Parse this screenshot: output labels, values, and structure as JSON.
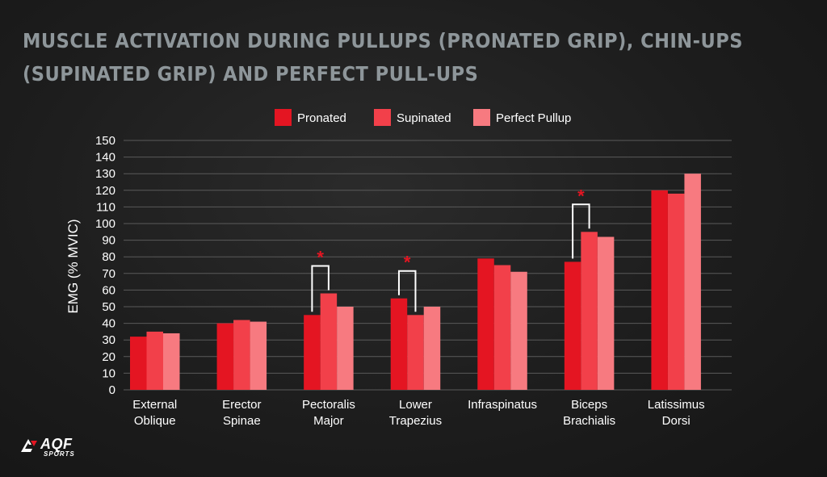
{
  "title": "Muscle Activation During Pullups (Pronated Grip), Chin-Ups (Supinated Grip) and Perfect Pull-Ups",
  "logo": {
    "main": "AQF",
    "sub": "SPORTS"
  },
  "colors": {
    "pronated": "#e41522",
    "supinated": "#f2404a",
    "perfect": "#f77a80",
    "grid": "#5a5a5a",
    "text": "#ffffff",
    "marker": "#e41522"
  },
  "chart_data": {
    "type": "bar",
    "title": "Muscle Activation During Pullups (Pronated Grip), Chin-Ups (Supinated Grip) and Perfect Pull-Ups",
    "ylabel": "EMG (% MVIC)",
    "xlabel": "",
    "ylim": [
      0,
      150
    ],
    "yticks": [
      0,
      10,
      20,
      30,
      40,
      50,
      60,
      70,
      80,
      90,
      100,
      110,
      120,
      130,
      140,
      150
    ],
    "grid": true,
    "legend_position": "top",
    "categories": [
      [
        "External",
        "Oblique"
      ],
      [
        "Erector",
        "Spinae"
      ],
      [
        "Pectoralis",
        "Major"
      ],
      [
        "Lower",
        "Trapezius"
      ],
      [
        "Infraspinatus"
      ],
      [
        "Biceps",
        "Brachialis"
      ],
      [
        "Latissimus",
        "Dorsi"
      ]
    ],
    "series": [
      {
        "name": "Pronated",
        "color": "#e41522",
        "values": [
          32,
          40,
          45,
          55,
          79,
          77,
          120
        ]
      },
      {
        "name": "Supinated",
        "color": "#f2404a",
        "values": [
          35,
          42,
          58,
          45,
          75,
          95,
          118
        ]
      },
      {
        "name": "Perfect Pullup",
        "color": "#f77a80",
        "values": [
          34,
          41,
          50,
          50,
          71,
          92,
          130
        ]
      }
    ],
    "annotations": [
      {
        "category_index": 2,
        "label": "*"
      },
      {
        "category_index": 3,
        "label": "*"
      },
      {
        "category_index": 5,
        "label": "*"
      }
    ]
  }
}
